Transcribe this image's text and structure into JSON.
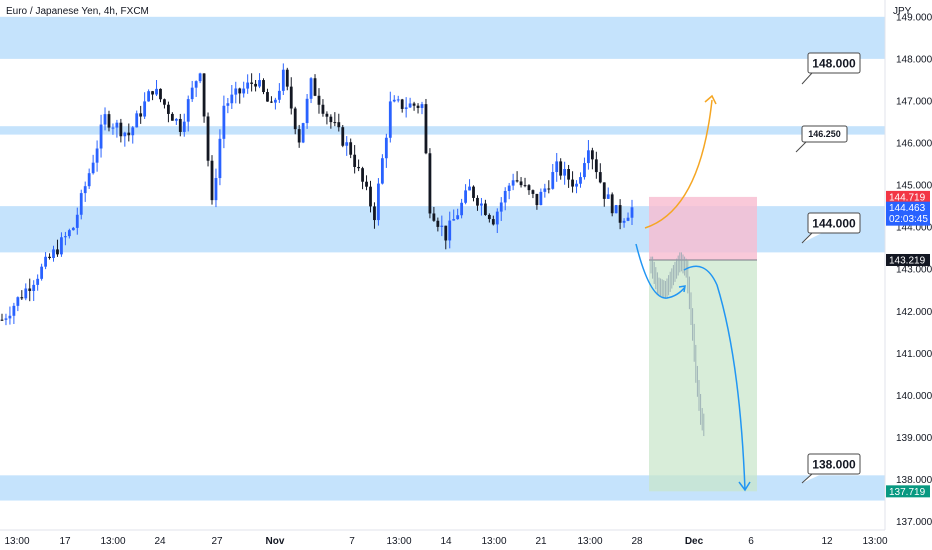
{
  "title": "Euro / Japanese Yen, 4h, FXCM",
  "currency": "JPY",
  "colors": {
    "up": "#2962ff",
    "down": "#131722",
    "zone": "#bbdefb",
    "arrow_down": "#2196f3",
    "arrow_up": "#f5a623",
    "stop": "#f8bbd0",
    "target": "#c8e6c9",
    "tag_red": "#f23645",
    "tag_blue": "#2962ff",
    "tag_black": "#131722",
    "tag_green": "#089981"
  },
  "chart_data": {
    "type": "candlestick",
    "ylim": [
      136.8,
      149.4
    ],
    "y_ticks": [
      137.0,
      138.0,
      139.0,
      140.0,
      141.0,
      142.0,
      143.0,
      144.0,
      145.0,
      146.0,
      147.0,
      148.0,
      149.0
    ],
    "x_ticks": [
      "13:00",
      "17",
      "13:00",
      "24",
      "27",
      "Nov",
      "7",
      "13:00",
      "14",
      "13:00",
      "21",
      "13:00",
      "28",
      "Dec",
      "6",
      "12",
      "13:00"
    ],
    "candle_count": 160,
    "price_path": [
      [
        0,
        141.8
      ],
      [
        10,
        143.0
      ],
      [
        18,
        144.0
      ],
      [
        26,
        146.6
      ],
      [
        32,
        146.2
      ],
      [
        38,
        147.3
      ],
      [
        45,
        146.4
      ],
      [
        50,
        147.8
      ],
      [
        53,
        144.5
      ],
      [
        56,
        146.9
      ],
      [
        64,
        147.5
      ],
      [
        68,
        146.8
      ],
      [
        71,
        147.6
      ],
      [
        75,
        146.1
      ],
      [
        78,
        147.4
      ],
      [
        83,
        146.5
      ],
      [
        88,
        145.8
      ],
      [
        94,
        144.3
      ],
      [
        98,
        146.9
      ],
      [
        106,
        146.9
      ],
      [
        108,
        144.5
      ],
      [
        112,
        143.8
      ],
      [
        118,
        144.9
      ],
      [
        124,
        144.2
      ],
      [
        129,
        145.2
      ],
      [
        135,
        144.6
      ],
      [
        140,
        145.4
      ],
      [
        145,
        145.0
      ],
      [
        148,
        146.0
      ],
      [
        152,
        144.8
      ],
      [
        156,
        144.2
      ],
      [
        159,
        144.45
      ]
    ],
    "zones": [
      {
        "label": "148.000",
        "low": 148.0,
        "high": 149.0
      },
      {
        "label": "146.250",
        "low": 146.2,
        "high": 146.4
      },
      {
        "label": "144.000",
        "low": 143.4,
        "high": 144.5
      },
      {
        "label": "138.000",
        "low": 137.5,
        "high": 138.1
      }
    ],
    "position": {
      "entry": 143.219,
      "stop": 144.719,
      "target": 137.719
    },
    "current_price": {
      "value": "144.463",
      "countdown": "02:03:45"
    },
    "price_tags": {
      "stop": "144.719",
      "entry": "143.219",
      "target": "137.719"
    },
    "projection": [
      [
        0,
        143.1
      ],
      [
        4,
        142.6
      ],
      [
        9,
        142.5
      ],
      [
        14,
        142.9
      ],
      [
        18,
        143.2
      ],
      [
        22,
        143.0
      ],
      [
        26,
        141.5
      ],
      [
        28,
        140.5
      ],
      [
        31,
        139.5
      ],
      [
        34,
        139.1
      ]
    ],
    "annotations": [
      "148.000",
      "146.250",
      "144.000",
      "138.000"
    ]
  }
}
